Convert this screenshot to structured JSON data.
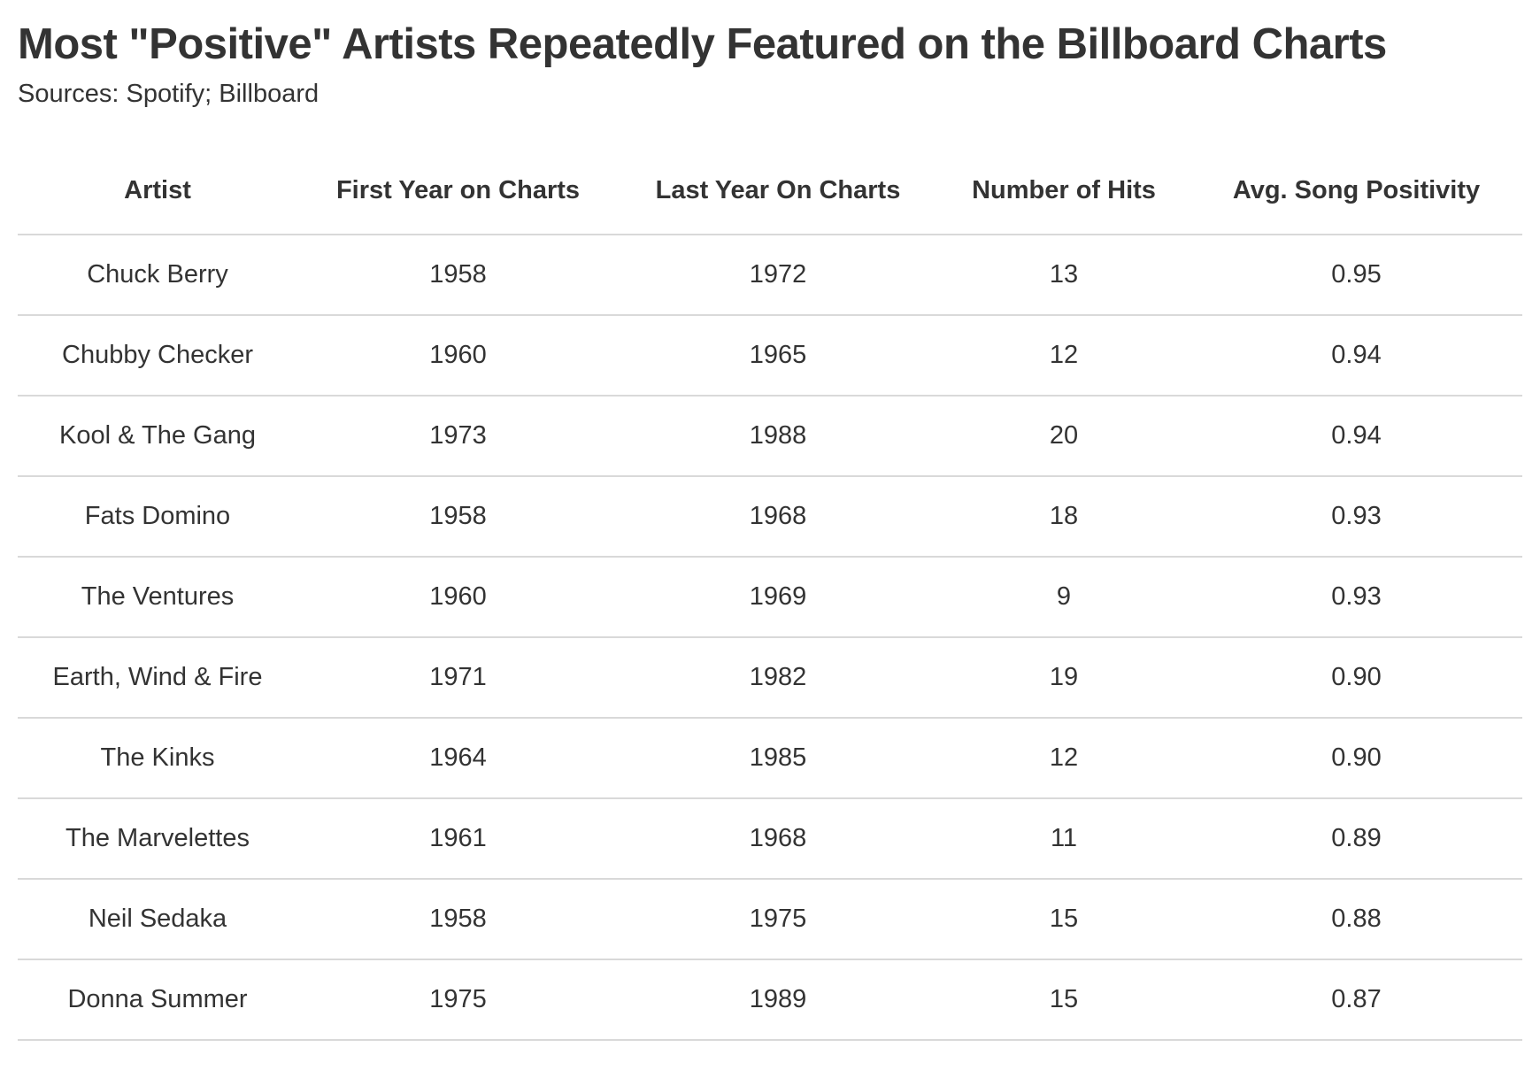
{
  "title": "Most \"Positive\" Artists Repeatedly Featured on the Billboard Charts",
  "subtitle": "Sources: Spotify; Billboard",
  "chart_data": {
    "type": "table",
    "title": "Most \"Positive\" Artists Repeatedly Featured on the Billboard Charts",
    "subtitle": "Sources: Spotify; Billboard",
    "columns": [
      "Artist",
      "First Year on Charts",
      "Last Year On Charts",
      "Number of Hits",
      "Avg. Song Positivity"
    ],
    "rows": [
      [
        "Chuck Berry",
        "1958",
        "1972",
        "13",
        "0.95"
      ],
      [
        "Chubby Checker",
        "1960",
        "1965",
        "12",
        "0.94"
      ],
      [
        "Kool & The Gang",
        "1973",
        "1988",
        "20",
        "0.94"
      ],
      [
        "Fats Domino",
        "1958",
        "1968",
        "18",
        "0.93"
      ],
      [
        "The Ventures",
        "1960",
        "1969",
        "9",
        "0.93"
      ],
      [
        "Earth, Wind & Fire",
        "1971",
        "1982",
        "19",
        "0.90"
      ],
      [
        "The Kinks",
        "1964",
        "1985",
        "12",
        "0.90"
      ],
      [
        "The Marvelettes",
        "1961",
        "1968",
        "11",
        "0.89"
      ],
      [
        "Neil Sedaka",
        "1958",
        "1975",
        "15",
        "0.88"
      ],
      [
        "Donna Summer",
        "1975",
        "1989",
        "15",
        "0.87"
      ]
    ]
  }
}
